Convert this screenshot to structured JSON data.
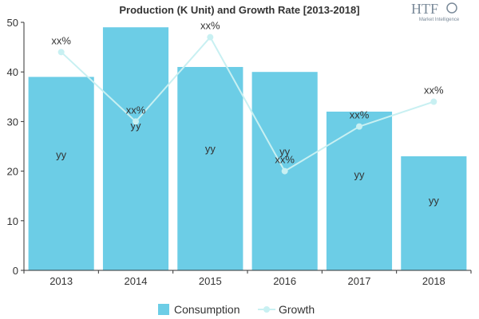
{
  "logo": {
    "text": "HTF",
    "subtext": "Market Intelligence"
  },
  "colors": {
    "bar": "#6ccde6",
    "line": "#c8f0f2",
    "axis": "#333333",
    "grid": "#d8d8d8"
  },
  "chart_data": {
    "type": "bar",
    "title": "Production (K Unit) and Growth Rate [2013-2018]",
    "categories": [
      "2013",
      "2014",
      "2015",
      "2016",
      "2017",
      "2018"
    ],
    "ylim": [
      0,
      50
    ],
    "yticks": [
      "0",
      "10",
      "20",
      "30",
      "40",
      "50"
    ],
    "grid": false,
    "legend_position": "bottom",
    "series": [
      {
        "name": "Consumption",
        "type": "bar",
        "values": [
          39,
          49,
          41,
          40,
          32,
          23
        ],
        "labels": [
          "yy",
          "yy",
          "yy",
          "yy",
          "yy",
          "yy"
        ]
      },
      {
        "name": "Growth",
        "type": "line",
        "values": [
          44,
          30,
          47,
          20,
          29,
          34
        ],
        "labels": [
          "xx%",
          "xx%",
          "xx%",
          "xx%",
          "xx%",
          "xx%"
        ]
      }
    ]
  }
}
